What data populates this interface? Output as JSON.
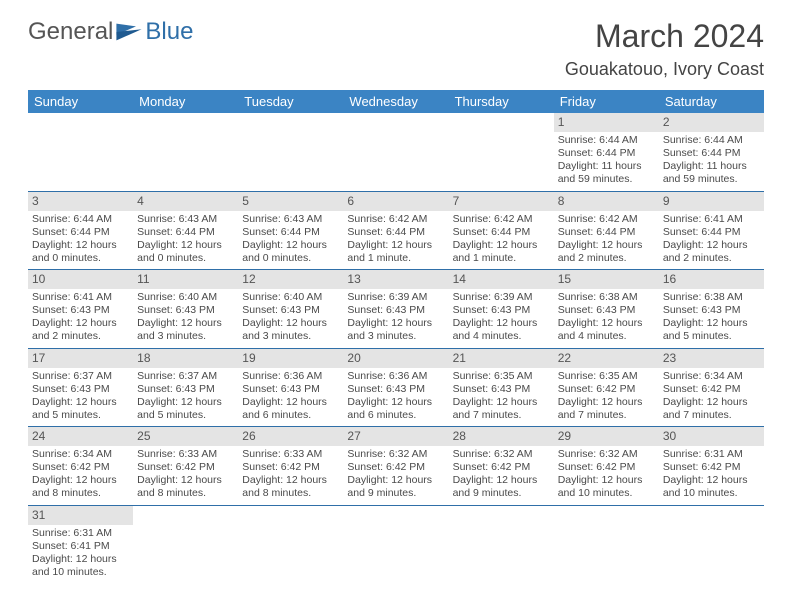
{
  "brand": {
    "part1": "General",
    "part2": "Blue"
  },
  "title": "March 2024",
  "location": "Gouakatouo, Ivory Coast",
  "colors": {
    "header_bg": "#3b84c4",
    "header_fg": "#ffffff",
    "daynum_bg": "#e4e4e4",
    "row_border": "#2f6fa8",
    "brand_gray": "#555555",
    "brand_blue": "#2f6fa8"
  },
  "weekdays": [
    "Sunday",
    "Monday",
    "Tuesday",
    "Wednesday",
    "Thursday",
    "Friday",
    "Saturday"
  ],
  "weeks": [
    [
      null,
      null,
      null,
      null,
      null,
      {
        "n": "1",
        "sr": "Sunrise: 6:44 AM",
        "ss": "Sunset: 6:44 PM",
        "dl": "Daylight: 11 hours and 59 minutes."
      },
      {
        "n": "2",
        "sr": "Sunrise: 6:44 AM",
        "ss": "Sunset: 6:44 PM",
        "dl": "Daylight: 11 hours and 59 minutes."
      }
    ],
    [
      {
        "n": "3",
        "sr": "Sunrise: 6:44 AM",
        "ss": "Sunset: 6:44 PM",
        "dl": "Daylight: 12 hours and 0 minutes."
      },
      {
        "n": "4",
        "sr": "Sunrise: 6:43 AM",
        "ss": "Sunset: 6:44 PM",
        "dl": "Daylight: 12 hours and 0 minutes."
      },
      {
        "n": "5",
        "sr": "Sunrise: 6:43 AM",
        "ss": "Sunset: 6:44 PM",
        "dl": "Daylight: 12 hours and 0 minutes."
      },
      {
        "n": "6",
        "sr": "Sunrise: 6:42 AM",
        "ss": "Sunset: 6:44 PM",
        "dl": "Daylight: 12 hours and 1 minute."
      },
      {
        "n": "7",
        "sr": "Sunrise: 6:42 AM",
        "ss": "Sunset: 6:44 PM",
        "dl": "Daylight: 12 hours and 1 minute."
      },
      {
        "n": "8",
        "sr": "Sunrise: 6:42 AM",
        "ss": "Sunset: 6:44 PM",
        "dl": "Daylight: 12 hours and 2 minutes."
      },
      {
        "n": "9",
        "sr": "Sunrise: 6:41 AM",
        "ss": "Sunset: 6:44 PM",
        "dl": "Daylight: 12 hours and 2 minutes."
      }
    ],
    [
      {
        "n": "10",
        "sr": "Sunrise: 6:41 AM",
        "ss": "Sunset: 6:43 PM",
        "dl": "Daylight: 12 hours and 2 minutes."
      },
      {
        "n": "11",
        "sr": "Sunrise: 6:40 AM",
        "ss": "Sunset: 6:43 PM",
        "dl": "Daylight: 12 hours and 3 minutes."
      },
      {
        "n": "12",
        "sr": "Sunrise: 6:40 AM",
        "ss": "Sunset: 6:43 PM",
        "dl": "Daylight: 12 hours and 3 minutes."
      },
      {
        "n": "13",
        "sr": "Sunrise: 6:39 AM",
        "ss": "Sunset: 6:43 PM",
        "dl": "Daylight: 12 hours and 3 minutes."
      },
      {
        "n": "14",
        "sr": "Sunrise: 6:39 AM",
        "ss": "Sunset: 6:43 PM",
        "dl": "Daylight: 12 hours and 4 minutes."
      },
      {
        "n": "15",
        "sr": "Sunrise: 6:38 AM",
        "ss": "Sunset: 6:43 PM",
        "dl": "Daylight: 12 hours and 4 minutes."
      },
      {
        "n": "16",
        "sr": "Sunrise: 6:38 AM",
        "ss": "Sunset: 6:43 PM",
        "dl": "Daylight: 12 hours and 5 minutes."
      }
    ],
    [
      {
        "n": "17",
        "sr": "Sunrise: 6:37 AM",
        "ss": "Sunset: 6:43 PM",
        "dl": "Daylight: 12 hours and 5 minutes."
      },
      {
        "n": "18",
        "sr": "Sunrise: 6:37 AM",
        "ss": "Sunset: 6:43 PM",
        "dl": "Daylight: 12 hours and 5 minutes."
      },
      {
        "n": "19",
        "sr": "Sunrise: 6:36 AM",
        "ss": "Sunset: 6:43 PM",
        "dl": "Daylight: 12 hours and 6 minutes."
      },
      {
        "n": "20",
        "sr": "Sunrise: 6:36 AM",
        "ss": "Sunset: 6:43 PM",
        "dl": "Daylight: 12 hours and 6 minutes."
      },
      {
        "n": "21",
        "sr": "Sunrise: 6:35 AM",
        "ss": "Sunset: 6:43 PM",
        "dl": "Daylight: 12 hours and 7 minutes."
      },
      {
        "n": "22",
        "sr": "Sunrise: 6:35 AM",
        "ss": "Sunset: 6:42 PM",
        "dl": "Daylight: 12 hours and 7 minutes."
      },
      {
        "n": "23",
        "sr": "Sunrise: 6:34 AM",
        "ss": "Sunset: 6:42 PM",
        "dl": "Daylight: 12 hours and 7 minutes."
      }
    ],
    [
      {
        "n": "24",
        "sr": "Sunrise: 6:34 AM",
        "ss": "Sunset: 6:42 PM",
        "dl": "Daylight: 12 hours and 8 minutes."
      },
      {
        "n": "25",
        "sr": "Sunrise: 6:33 AM",
        "ss": "Sunset: 6:42 PM",
        "dl": "Daylight: 12 hours and 8 minutes."
      },
      {
        "n": "26",
        "sr": "Sunrise: 6:33 AM",
        "ss": "Sunset: 6:42 PM",
        "dl": "Daylight: 12 hours and 8 minutes."
      },
      {
        "n": "27",
        "sr": "Sunrise: 6:32 AM",
        "ss": "Sunset: 6:42 PM",
        "dl": "Daylight: 12 hours and 9 minutes."
      },
      {
        "n": "28",
        "sr": "Sunrise: 6:32 AM",
        "ss": "Sunset: 6:42 PM",
        "dl": "Daylight: 12 hours and 9 minutes."
      },
      {
        "n": "29",
        "sr": "Sunrise: 6:32 AM",
        "ss": "Sunset: 6:42 PM",
        "dl": "Daylight: 12 hours and 10 minutes."
      },
      {
        "n": "30",
        "sr": "Sunrise: 6:31 AM",
        "ss": "Sunset: 6:42 PM",
        "dl": "Daylight: 12 hours and 10 minutes."
      }
    ],
    [
      {
        "n": "31",
        "sr": "Sunrise: 6:31 AM",
        "ss": "Sunset: 6:41 PM",
        "dl": "Daylight: 12 hours and 10 minutes."
      },
      null,
      null,
      null,
      null,
      null,
      null
    ]
  ]
}
